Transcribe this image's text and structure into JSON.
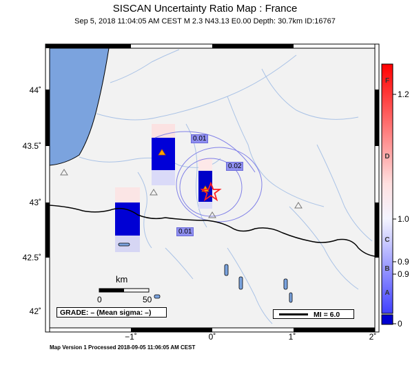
{
  "header": {
    "title": "SISCAN Uncertainty Ratio Map : France",
    "subtitle": "Sep  5, 2018 11:04:05 AM CEST   M 2.3   N43.13 E0.00   Depth: 30.7km   ID:16767"
  },
  "axes": {
    "lat_ticks": [
      "44˚",
      "43.5˚",
      "43˚",
      "42.5˚",
      "42˚"
    ],
    "lon_ticks": [
      "−1˚",
      "0˚",
      "1˚",
      "2˚"
    ]
  },
  "colorbar": {
    "letters": [
      "F",
      "D",
      "C",
      "B",
      "A"
    ],
    "values": [
      "1.2",
      "1.0",
      "0.9",
      "0.9",
      "0"
    ],
    "colors": [
      "#ff0000",
      "#ffffff",
      "#0000ff"
    ]
  },
  "contours": [
    "0.01",
    "0.02",
    "0.01"
  ],
  "scale": {
    "label": "km",
    "min": "0",
    "max": "50"
  },
  "legend": {
    "grade": "GRADE: – (Mean sigma: –)",
    "mi": "MI = 6.0"
  },
  "footer": "Map Version 1 Processed 2018-09-05 11:06:05 AM CEST"
}
